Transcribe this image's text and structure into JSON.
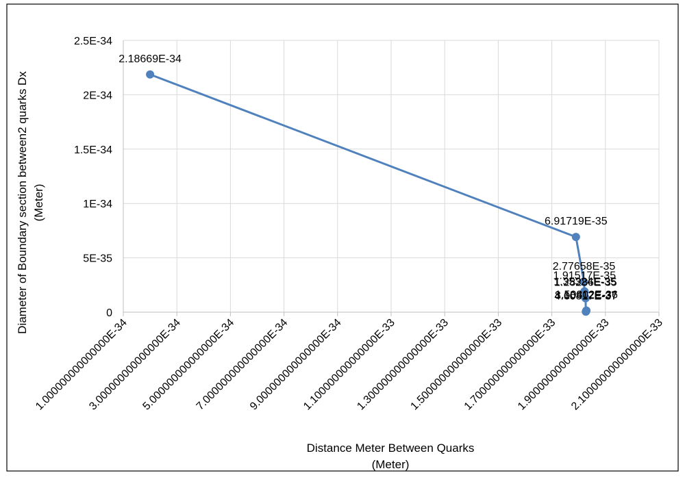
{
  "chart_data": {
    "type": "scatter",
    "mode": "lines+markers",
    "title": "",
    "xlabel_lines": [
      "Distance Meter Between Quarks",
      "(Meter)"
    ],
    "ylabel_lines": [
      "Diameter  of Boundary section between2 quarks Dx",
      "(Meter)"
    ],
    "x_unit_scale": "1E-34 meter",
    "xlim": [
      1.0,
      21.0
    ],
    "ylim": [
      0,
      2.5e-34
    ],
    "x_ticks": [
      1,
      3,
      5,
      7,
      9,
      11,
      13,
      15,
      17,
      19,
      21
    ],
    "x_tick_labels": [
      "1.000000000000000E-34",
      "3.000000000000000E-34",
      "5.000000000000000E-34",
      "7.000000000000000E-34",
      "9.000000000000000E-34",
      "1.100000000000000E-33",
      "1.300000000000000E-33",
      "1.500000000000000E-33",
      "1.700000000000000E-33",
      "1.900000000000000E-33",
      "2.100000000000000E-33"
    ],
    "y_ticks": [
      0,
      5e-35,
      1e-34,
      1.5e-34,
      2e-34,
      2.5e-34
    ],
    "y_tick_labels": [
      "0",
      "5E-35",
      "1E-34",
      "1.5E-34",
      "2E-34",
      "2.5E-34"
    ],
    "grid": true,
    "legend": "none",
    "line_color": "#4f81bd",
    "series": [
      {
        "x": [
          2.0,
          17.9,
          18.2,
          18.22,
          18.24,
          18.26,
          18.27,
          18.28,
          18.29
        ],
        "y": [
          2.18669e-34,
          6.91719e-35,
          2.77658e-35,
          1.91517e-35,
          1.35324e-35,
          1.28286e-35,
          4.60817e-37,
          8.15412e-37,
          1.50802e-36
        ],
        "labels": [
          "2.18669E-34",
          "6.91719E-35",
          "2.77658E-35",
          "1.91517E-35",
          "1.35324E-35",
          "1.28286E-35",
          "4.60817E-37",
          "8.15412E-37",
          "1.50802E-36"
        ]
      }
    ]
  }
}
